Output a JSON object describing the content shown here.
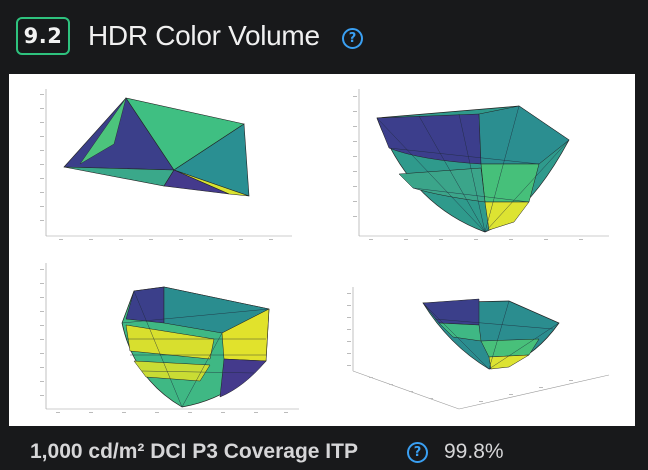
{
  "header": {
    "section_number": "9.2",
    "title": "HDR Color Volume",
    "help_icon": "question-circle-icon"
  },
  "colors": {
    "background": "#18191b",
    "badge_border": "#2ec27e",
    "help_accent": "#3aa0f3",
    "viridis_dark": "#3b2f7f",
    "viridis_teal": "#2b8f8c",
    "viridis_green": "#4fc47a",
    "viridis_yellow": "#e5e42a"
  },
  "image": {
    "description_free": true,
    "plots": [
      {
        "name": "color-volume-plot-top-left"
      },
      {
        "name": "color-volume-plot-top-right"
      },
      {
        "name": "color-volume-plot-bottom-left"
      },
      {
        "name": "color-volume-plot-bottom-right"
      }
    ]
  },
  "footer": {
    "metric_label": "1,000 cd/m² DCI P3 Coverage ITP",
    "metric_value": "99.8%",
    "help_icon": "question-circle-icon"
  }
}
